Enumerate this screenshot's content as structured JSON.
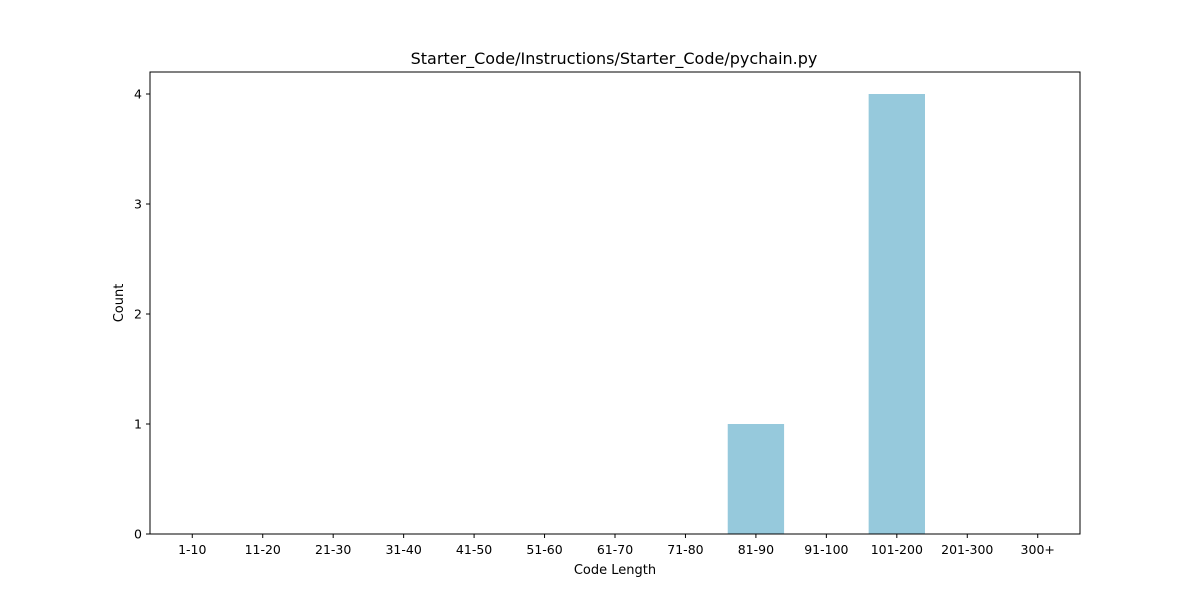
{
  "chart_data": {
    "type": "bar",
    "title": "Starter_Code/Instructions/Starter_Code/pychain.py",
    "xlabel": "Code Length",
    "ylabel": "Count",
    "categories": [
      "1-10",
      "11-20",
      "21-30",
      "31-40",
      "41-50",
      "51-60",
      "61-70",
      "71-80",
      "81-90",
      "91-100",
      "101-200",
      "201-300",
      "300+"
    ],
    "values": [
      0,
      0,
      0,
      0,
      0,
      0,
      0,
      0,
      1,
      0,
      4,
      0,
      0
    ],
    "ylim": [
      0,
      4.2
    ],
    "yticks": [
      0,
      1,
      2,
      3,
      4
    ],
    "bar_color": "#96c9dc",
    "grid": false,
    "legend": "none"
  }
}
